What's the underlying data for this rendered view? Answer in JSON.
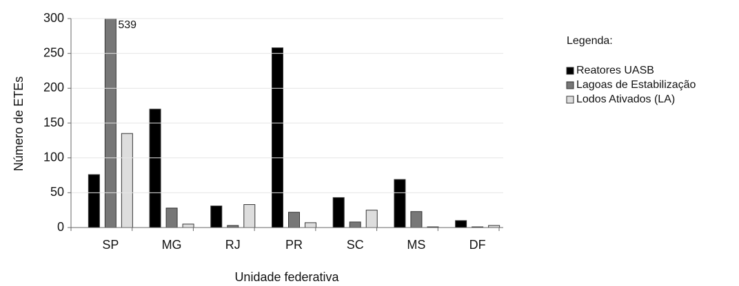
{
  "chart_data": {
    "type": "bar",
    "ylabel": "Número de ETEs",
    "xlabel": "Unidade federativa",
    "legend_title": "Legenda:",
    "categories": [
      "SP",
      "MG",
      "RJ",
      "PR",
      "SC",
      "MS",
      "DF"
    ],
    "series": [
      {
        "name": "Reatores UASB",
        "color": "#000000",
        "values": [
          76,
          170,
          31,
          258,
          43,
          69,
          10
        ]
      },
      {
        "name": "Lagoas de Estabilização",
        "color": "#777777",
        "values": [
          539,
          28,
          3,
          22,
          8,
          23,
          1
        ],
        "value_labels": [
          "539",
          null,
          null,
          null,
          null,
          null,
          null
        ]
      },
      {
        "name": "Lodos Ativados (LA)",
        "color": "#dddddd",
        "values": [
          135,
          5,
          33,
          7,
          25,
          1,
          3
        ]
      }
    ],
    "ylim": [
      0,
      300
    ],
    "yticks": [
      0,
      50,
      100,
      150,
      200,
      250,
      300
    ],
    "grid": true,
    "legend": "right"
  }
}
